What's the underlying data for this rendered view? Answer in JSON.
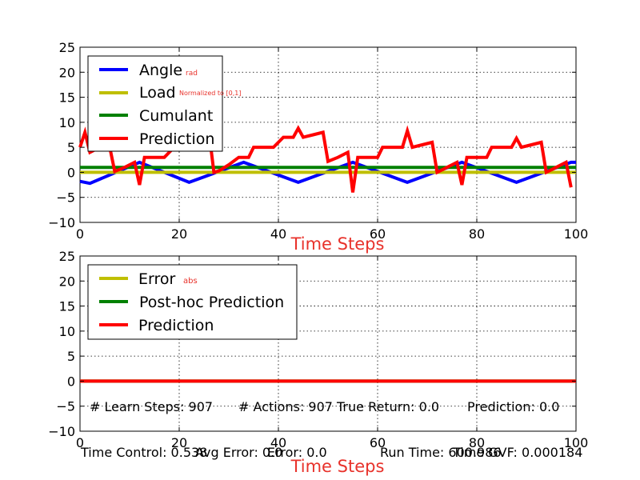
{
  "chart_data": [
    {
      "type": "line",
      "xlabel": "Time Steps",
      "xlim": [
        0,
        100
      ],
      "ylim": [
        -10,
        25
      ],
      "xticks": [
        "0",
        "20",
        "40",
        "60",
        "80",
        "100"
      ],
      "yticks": [
        "25",
        "20",
        "15",
        "10",
        "5",
        "0",
        "−5",
        "−10"
      ],
      "grid": true,
      "legend_position": "top-left",
      "series": [
        {
          "name": "Angle",
          "unit": "rad",
          "color": "#0000ff",
          "x": [
            0,
            2,
            12,
            22,
            33,
            44,
            55,
            66,
            77,
            88,
            99,
            100
          ],
          "y": [
            -1.8,
            -2.2,
            2.0,
            -2.0,
            2.0,
            -2.0,
            2.0,
            -2.0,
            2.0,
            -2.0,
            2.0,
            2.0
          ]
        },
        {
          "name": "Load",
          "unit": "Normalized to [0,1]",
          "color": "#bfbf00",
          "x": [
            0,
            100
          ],
          "y": [
            0,
            0
          ]
        },
        {
          "name": "Cumulant",
          "unit": "",
          "color": "#008000",
          "x": [
            0,
            100
          ],
          "y": [
            1,
            1
          ]
        },
        {
          "name": "Prediction",
          "unit": "",
          "color": "#ff0000",
          "x": [
            0,
            1,
            2,
            4,
            6,
            7,
            9,
            11,
            12,
            13,
            15,
            17,
            18,
            19,
            21,
            23,
            25,
            26,
            27,
            28,
            30,
            32,
            34,
            35,
            37,
            39,
            41,
            43,
            44,
            45,
            47,
            49,
            50,
            52,
            54,
            55,
            56,
            58,
            60,
            61,
            63,
            65,
            66,
            67,
            69,
            71,
            72,
            74,
            76,
            77,
            78,
            80,
            82,
            83,
            85,
            87,
            88,
            89,
            91,
            93,
            94,
            96,
            98,
            99
          ],
          "y": [
            5,
            8,
            4,
            5,
            5,
            0.2,
            1,
            2,
            -2.5,
            3,
            3,
            3,
            4,
            5,
            6,
            7,
            7.5,
            8,
            0,
            0.3,
            1.5,
            3,
            3,
            5,
            5,
            5,
            7,
            7,
            8.8,
            7,
            7.5,
            8,
            2.2,
            3,
            4,
            -4,
            3,
            3,
            3,
            5,
            5,
            5,
            8.3,
            5,
            5.5,
            6,
            0,
            1,
            2,
            -2.5,
            3,
            3,
            3,
            5,
            5,
            5,
            6.8,
            5,
            5.5,
            6,
            0,
            1,
            2,
            -3
          ]
        }
      ]
    },
    {
      "type": "line",
      "xlabel": "Time Steps",
      "xlim": [
        0,
        100
      ],
      "ylim": [
        -10,
        25
      ],
      "xticks": [
        "0",
        "20",
        "40",
        "60",
        "80",
        "100"
      ],
      "yticks": [
        "25",
        "20",
        "15",
        "10",
        "5",
        "0",
        "−5",
        "−10"
      ],
      "grid": true,
      "legend_position": "top-left",
      "series": [
        {
          "name": "Error",
          "unit": "abs",
          "color": "#bfbf00",
          "x": [
            0,
            100
          ],
          "y": [
            0,
            0
          ]
        },
        {
          "name": "Post-hoc Prediction",
          "unit": "",
          "color": "#008000",
          "x": [
            0,
            100
          ],
          "y": [
            0,
            0
          ]
        },
        {
          "name": "Prediction",
          "unit": "",
          "color": "#ff0000",
          "x": [
            0,
            100
          ],
          "y": [
            0,
            0
          ]
        }
      ]
    }
  ],
  "stats_inner": {
    "learn_steps": "# Learn Steps: 907",
    "actions": "# Actions: 907",
    "true_return": "True Return: 0.0",
    "prediction": "Prediction: 0.0"
  },
  "stats_footer": {
    "time_control": "Time Control: 0.538",
    "avg_error": "Avg Error: 0.0",
    "error": "Error: 0.0",
    "run_time": "Run Time: 600.986",
    "time_gvf": "Time GVF: 0.000184"
  }
}
